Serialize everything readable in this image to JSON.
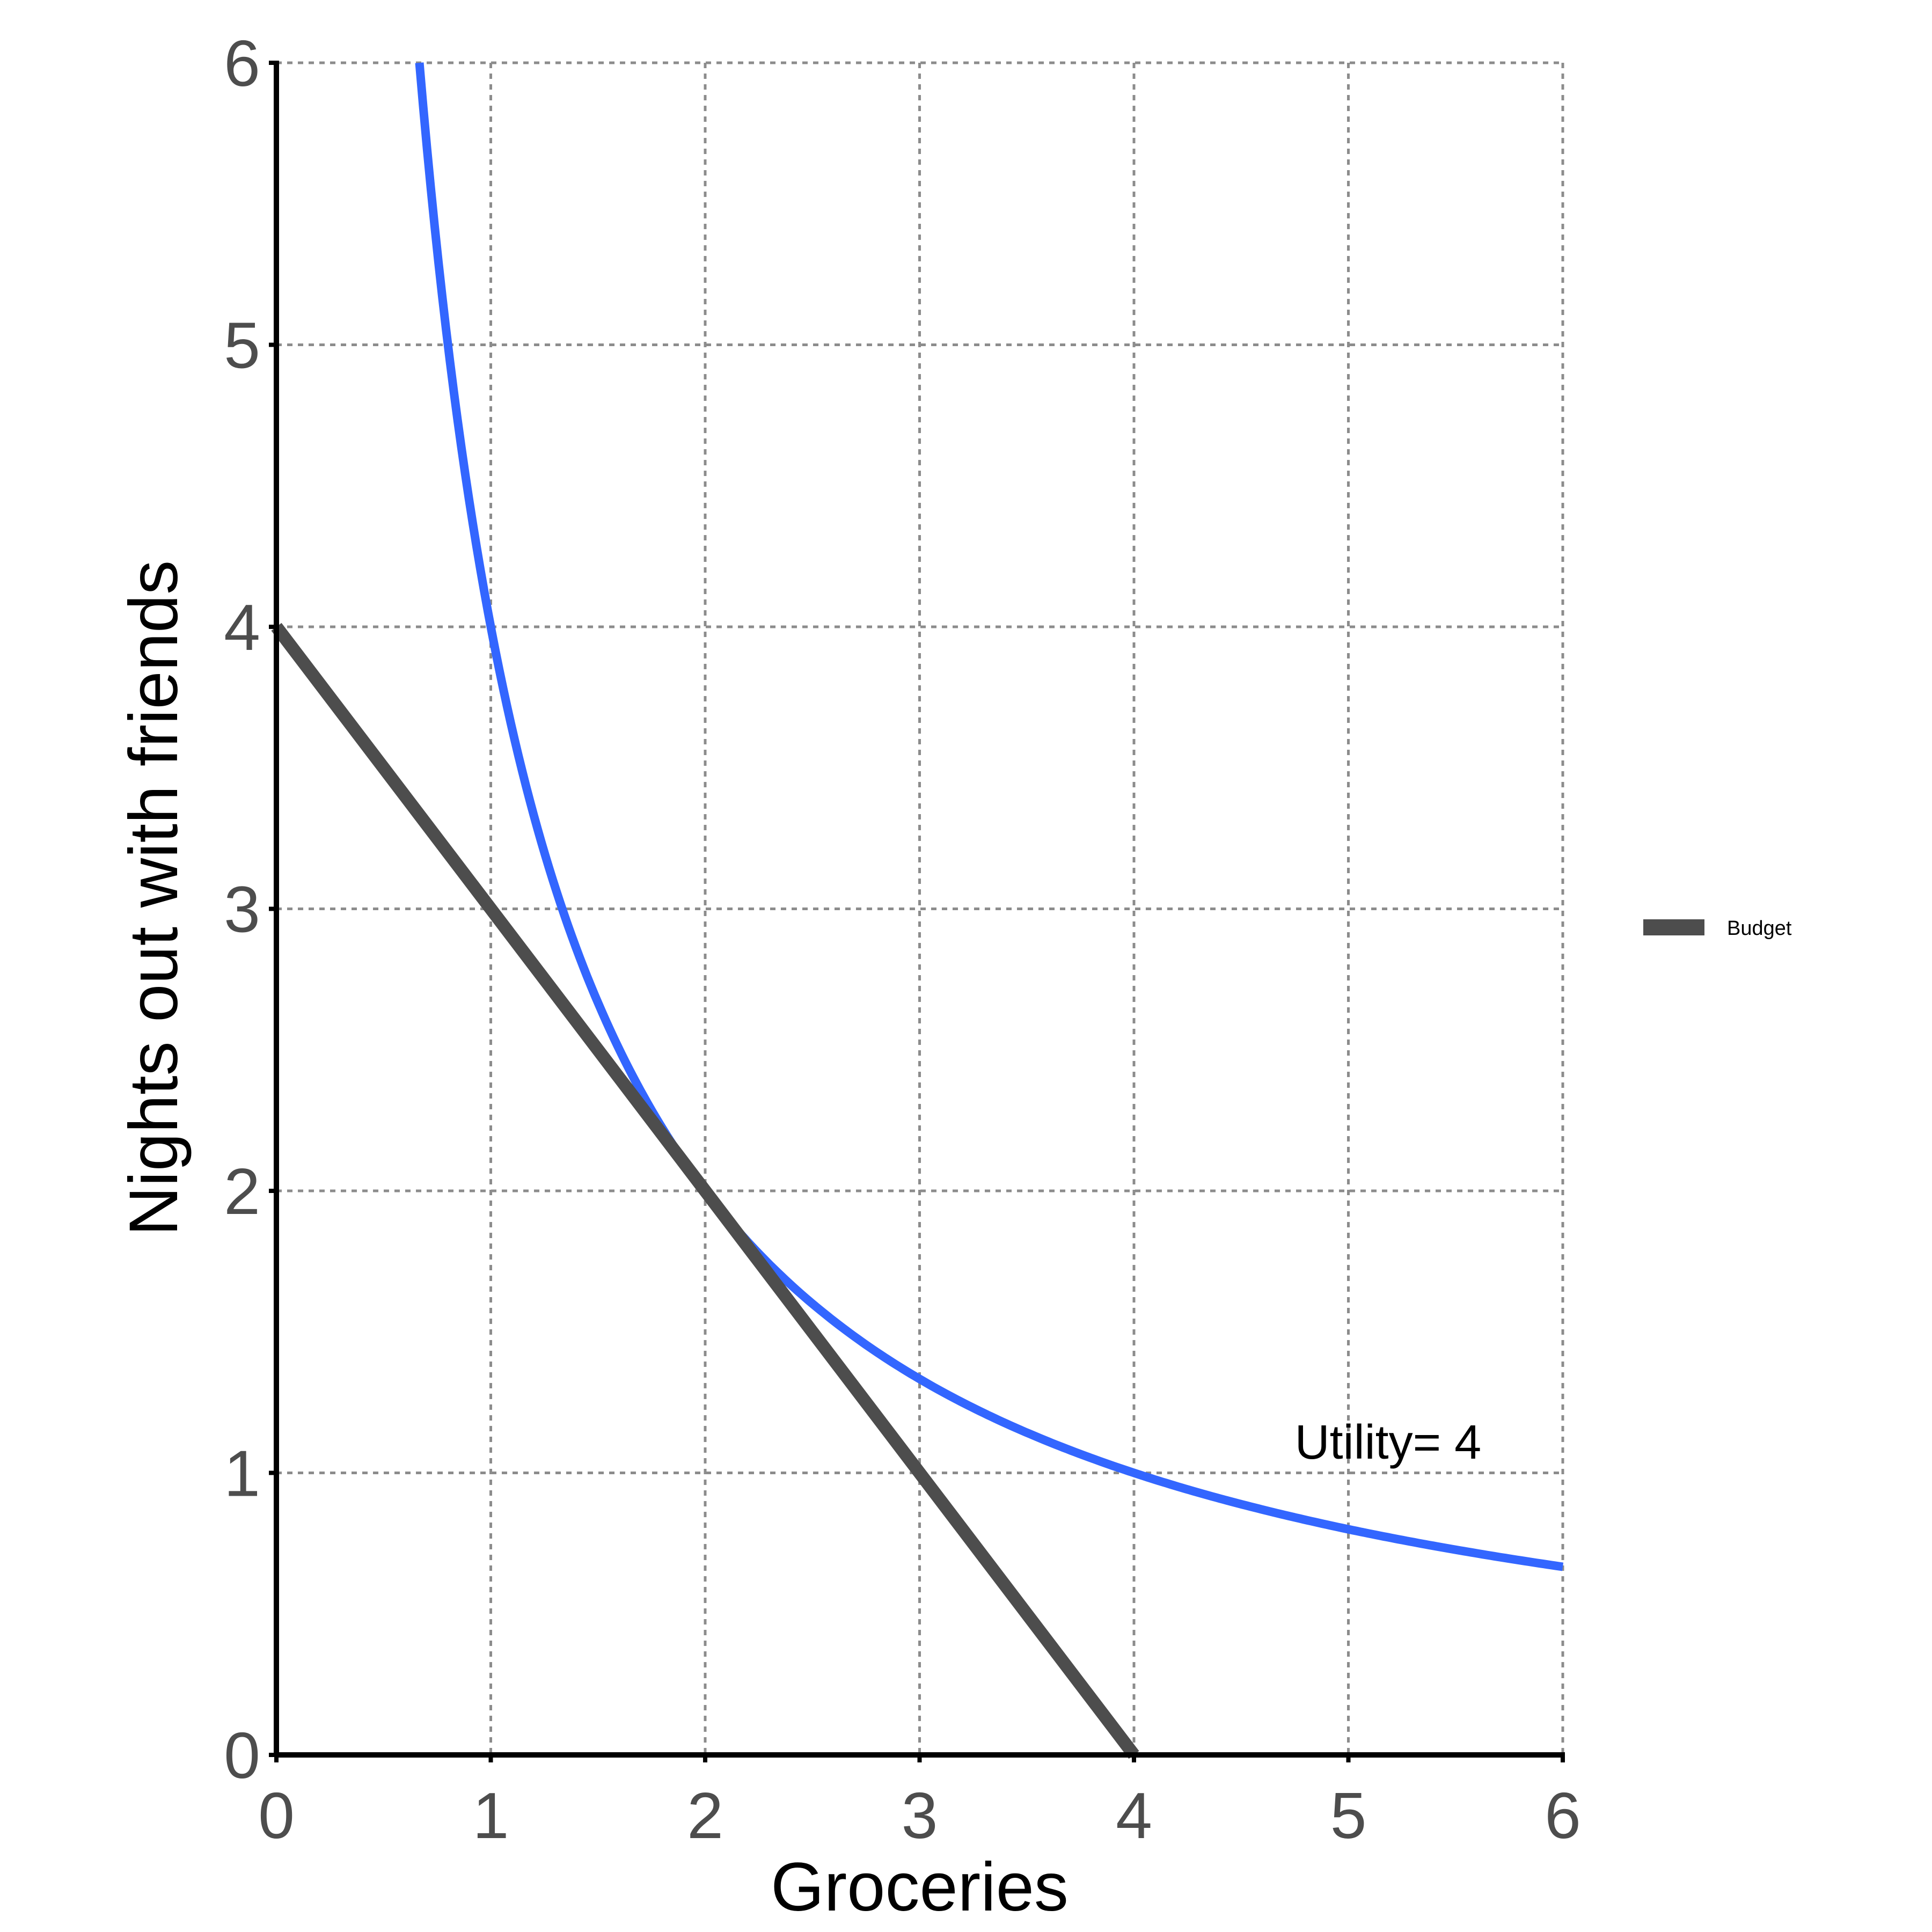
{
  "chart_data": {
    "type": "line",
    "title": "",
    "xlabel": "Groceries",
    "ylabel": "Nights out with friends",
    "xlim": [
      0,
      6
    ],
    "ylim": [
      0,
      6
    ],
    "x_ticks": [
      "0",
      "1",
      "2",
      "3",
      "4",
      "5",
      "6"
    ],
    "y_ticks": [
      "0",
      "1",
      "2",
      "3",
      "4",
      "5",
      "6"
    ],
    "grid": true,
    "legend_position": "right",
    "series": [
      {
        "name": "Budget",
        "color": "#4d4d4d",
        "x": [
          0,
          1,
          2,
          3,
          4
        ],
        "y": [
          4,
          3,
          2,
          1,
          0
        ]
      },
      {
        "color": "#3366ff",
        "x": [
          0.667,
          0.8,
          1,
          1.25,
          1.5,
          2,
          2.5,
          3,
          4,
          5,
          6
        ],
        "y": [
          6,
          5,
          4,
          3.2,
          2.667,
          2,
          1.6,
          1.333,
          1,
          0.8,
          0.667
        ]
      }
    ],
    "annotations": [
      {
        "text": "Utility= 4",
        "x": 4.75,
        "y": 1.05
      }
    ]
  }
}
